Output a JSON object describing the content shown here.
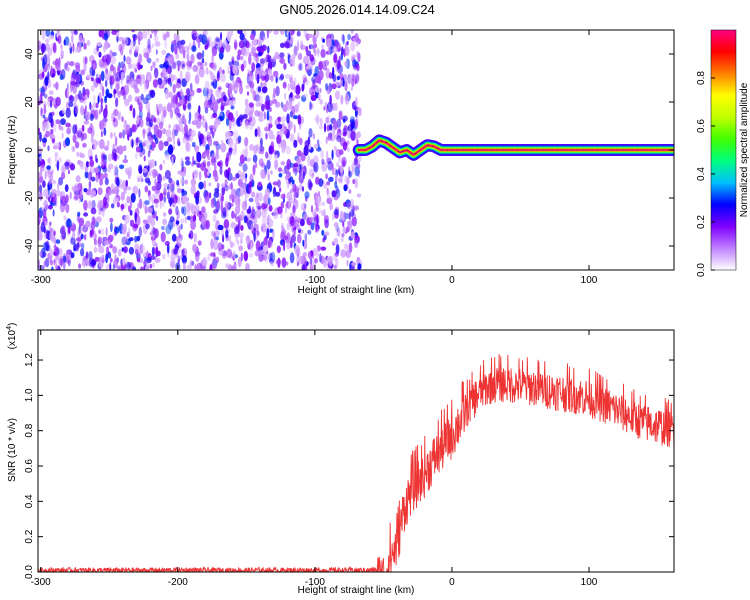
{
  "figure": {
    "title": "GN05.2026.014.14.09.C24"
  },
  "chart_data": [
    {
      "type": "heatmap",
      "xlabel": "Height of straight line (km)",
      "ylabel": "Frequency (Hz)",
      "xlim": [
        -302,
        162
      ],
      "ylim": [
        -50,
        50
      ],
      "xticks": [
        -300,
        -200,
        -100,
        0,
        100
      ],
      "yticks": [
        40,
        20,
        0,
        -20,
        -40
      ],
      "noise_region": {
        "x": [
          -302,
          -70
        ],
        "y": [
          -50,
          50
        ],
        "amplitude": [
          0.05,
          0.3
        ]
      },
      "signal_band": {
        "points": [
          {
            "x": -68,
            "y": 0
          },
          {
            "x": -63,
            "y": 0
          },
          {
            "x": -58,
            "y": 1.5
          },
          {
            "x": -53,
            "y": 4
          },
          {
            "x": -48,
            "y": 3
          },
          {
            "x": -43,
            "y": 1
          },
          {
            "x": -38,
            "y": -1
          },
          {
            "x": -33,
            "y": 0
          },
          {
            "x": -28,
            "y": -2
          },
          {
            "x": -23,
            "y": 0
          },
          {
            "x": -18,
            "y": 2
          },
          {
            "x": -13,
            "y": 1.5
          },
          {
            "x": -8,
            "y": 0
          },
          {
            "x": 0,
            "y": 0
          },
          {
            "x": 162,
            "y": 0
          }
        ],
        "peak_amplitude": 1.0
      },
      "colorbar": {
        "label": "Normalized spectral amplitude",
        "range": [
          0.0,
          1.0
        ],
        "ticks": [
          0.0,
          0.2,
          0.4,
          0.6,
          0.8
        ],
        "colors": [
          "#ffffff",
          "#c080ff",
          "#8000ff",
          "#0000ff",
          "#00c0ff",
          "#00ff80",
          "#40ff00",
          "#c0ff00",
          "#ffff00",
          "#ff8000",
          "#ff0000",
          "#ff0080"
        ]
      }
    },
    {
      "type": "line",
      "xlabel": "Height of straight line (km)",
      "ylabel": "SNR (10 * v/v)",
      "y_multiplier": "(x10",
      "y_multiplier_exp": "4",
      "y_multiplier_close": ")",
      "xlim": [
        -302,
        162
      ],
      "ylim": [
        0.0,
        1.37
      ],
      "xticks": [
        -300,
        -200,
        -100,
        0,
        100
      ],
      "yticks": [
        0.0,
        0.2,
        0.4,
        0.6,
        0.8,
        1.0,
        1.2
      ],
      "ytick_labels": [
        "0.0",
        "0.2",
        "0.4",
        "0.6",
        "0.8",
        "1.0",
        "1.2"
      ],
      "line_color": "#ee3333",
      "envelope": [
        {
          "x": -302,
          "y": 0.01
        },
        {
          "x": -150,
          "y": 0.01
        },
        {
          "x": -60,
          "y": 0.01
        },
        {
          "x": -50,
          "y": 0.02
        },
        {
          "x": -45,
          "y": 0.12
        },
        {
          "x": -40,
          "y": 0.2
        },
        {
          "x": -35,
          "y": 0.4
        },
        {
          "x": -30,
          "y": 0.5
        },
        {
          "x": -20,
          "y": 0.6
        },
        {
          "x": -10,
          "y": 0.72
        },
        {
          "x": 0,
          "y": 0.82
        },
        {
          "x": 10,
          "y": 0.95
        },
        {
          "x": 20,
          "y": 1.05
        },
        {
          "x": 30,
          "y": 1.1
        },
        {
          "x": 40,
          "y": 1.1
        },
        {
          "x": 60,
          "y": 1.08
        },
        {
          "x": 80,
          "y": 1.05
        },
        {
          "x": 100,
          "y": 1.02
        },
        {
          "x": 120,
          "y": 0.95
        },
        {
          "x": 140,
          "y": 0.88
        },
        {
          "x": 162,
          "y": 0.84
        }
      ]
    }
  ]
}
